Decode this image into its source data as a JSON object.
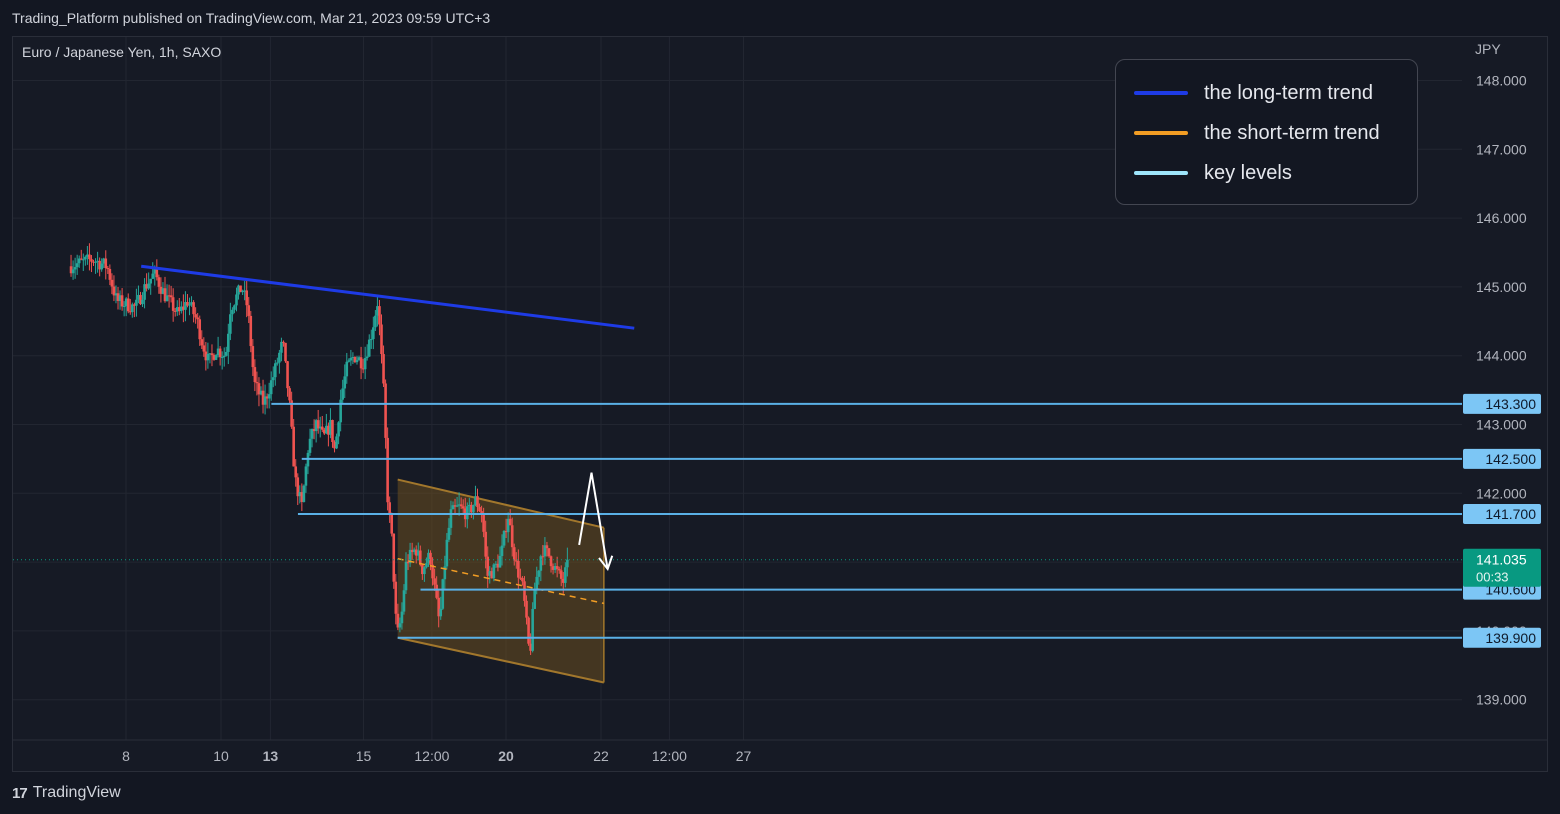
{
  "header": {
    "published": "Trading_Platform published on TradingView.com, Mar 21, 2023 09:59 UTC+3"
  },
  "chart_header": {
    "symbol": "Euro / Japanese Yen, 1h, SAXO",
    "currency": "JPY"
  },
  "legend": {
    "items": [
      {
        "label": "the long-term trend",
        "color": "#1e3be6"
      },
      {
        "label": "the short-term trend",
        "color": "#f29d24"
      },
      {
        "label": "key levels",
        "color": "#9ee5fb"
      }
    ]
  },
  "footer": {
    "brand_mark": "17",
    "brand": "TradingView"
  },
  "colors": {
    "background": "#161a25",
    "grid": "#222631",
    "up": "#26a69a",
    "down": "#ef5350",
    "long_trend": "#1e3be6",
    "short_trend": "#f29d24",
    "channel_fill": "#6b4e1f",
    "channel_edge": "#a2772c",
    "key_level": "#5ab0e6",
    "level_badge": "#7cc6f5",
    "price_badge": "#089981",
    "arrow": "#ffffff"
  },
  "chart_data": {
    "type": "candlestick",
    "title": "Euro / Japanese Yen, 1h, SAXO",
    "y_unit": "JPY",
    "ylim": [
      138.75,
      148.35
    ],
    "y_ticks": [
      "139.000",
      "140.000",
      "141.000",
      "142.000",
      "143.000",
      "144.000",
      "145.000",
      "146.000",
      "147.000",
      "148.000"
    ],
    "x_ticks": [
      {
        "t": 0.0,
        "label": "8",
        "bold": false
      },
      {
        "t": 1.0,
        "label": "10",
        "bold": false
      },
      {
        "t": 1.52,
        "label": "13",
        "bold": true
      },
      {
        "t": 2.5,
        "label": "15",
        "bold": false
      },
      {
        "t": 3.22,
        "label": "12:00",
        "bold": false
      },
      {
        "t": 4.0,
        "label": "20",
        "bold": true
      },
      {
        "t": 5.0,
        "label": "22",
        "bold": false
      },
      {
        "t": 5.72,
        "label": "12:00",
        "bold": false
      },
      {
        "t": 6.5,
        "label": "27",
        "bold": false
      }
    ],
    "price_path": [
      [
        -0.6,
        145.3
      ],
      [
        -0.35,
        145.4
      ],
      [
        -0.2,
        145.3
      ],
      [
        -0.1,
        144.8
      ],
      [
        0.1,
        144.7
      ],
      [
        0.2,
        145.0
      ],
      [
        0.3,
        145.2
      ],
      [
        0.4,
        144.9
      ],
      [
        0.55,
        144.6
      ],
      [
        0.65,
        144.8
      ],
      [
        0.75,
        144.5
      ],
      [
        0.8,
        144.2
      ],
      [
        0.87,
        143.9
      ],
      [
        0.95,
        144.1
      ],
      [
        1.05,
        144.0
      ],
      [
        1.1,
        144.7
      ],
      [
        1.18,
        144.9
      ],
      [
        1.22,
        145.0
      ],
      [
        1.28,
        144.7
      ],
      [
        1.35,
        143.6
      ],
      [
        1.45,
        143.3
      ],
      [
        1.55,
        143.7
      ],
      [
        1.65,
        144.2
      ],
      [
        1.72,
        143.3
      ],
      [
        1.78,
        142.2
      ],
      [
        1.85,
        141.8
      ],
      [
        1.92,
        142.7
      ],
      [
        2.0,
        143.0
      ],
      [
        2.08,
        142.8
      ],
      [
        2.15,
        143.0
      ],
      [
        2.2,
        142.6
      ],
      [
        2.25,
        143.3
      ],
      [
        2.32,
        143.8
      ],
      [
        2.4,
        144.0
      ],
      [
        2.5,
        143.9
      ],
      [
        2.58,
        144.3
      ],
      [
        2.65,
        144.8
      ],
      [
        2.72,
        143.3
      ],
      [
        2.75,
        142.0
      ],
      [
        2.8,
        141.3
      ],
      [
        2.85,
        139.9
      ],
      [
        2.9,
        140.2
      ],
      [
        2.95,
        141.0
      ],
      [
        3.05,
        141.2
      ],
      [
        3.12,
        140.9
      ],
      [
        3.2,
        141.1
      ],
      [
        3.26,
        140.5
      ],
      [
        3.3,
        140.1
      ],
      [
        3.37,
        141.2
      ],
      [
        3.42,
        141.7
      ],
      [
        3.5,
        141.8
      ],
      [
        3.6,
        141.7
      ],
      [
        3.68,
        141.9
      ],
      [
        3.75,
        141.7
      ],
      [
        3.8,
        140.8
      ],
      [
        3.88,
        140.9
      ],
      [
        3.95,
        141.1
      ],
      [
        4.02,
        141.7
      ],
      [
        4.1,
        141.0
      ],
      [
        4.18,
        140.6
      ],
      [
        4.25,
        139.6
      ],
      [
        4.3,
        140.6
      ],
      [
        4.38,
        141.2
      ],
      [
        4.45,
        141.1
      ],
      [
        4.52,
        140.9
      ],
      [
        4.6,
        140.7
      ],
      [
        4.65,
        141.0
      ]
    ],
    "last_t": 4.65,
    "last_price": 141.035,
    "last_price_label": "141.035",
    "countdown": "00:33",
    "key_levels": [
      {
        "price": 143.3,
        "label": "143.300",
        "t_start": 1.53
      },
      {
        "price": 142.5,
        "label": "142.500",
        "t_start": 1.85
      },
      {
        "price": 141.7,
        "label": "141.700",
        "t_start": 1.81
      },
      {
        "price": 140.6,
        "label": "140.600",
        "t_start": 3.1
      },
      {
        "price": 139.9,
        "label": "139.900",
        "t_start": 2.86
      }
    ],
    "long_term_trend": {
      "from": [
        0.16,
        145.3
      ],
      "to": [
        5.35,
        144.4
      ]
    },
    "short_term_channel": {
      "upper": {
        "from": [
          2.86,
          142.2
        ],
        "to": [
          5.03,
          141.5
        ]
      },
      "lower": {
        "from": [
          2.86,
          139.9
        ],
        "to": [
          5.03,
          139.25
        ]
      },
      "mid": {
        "from": [
          2.86,
          141.05
        ],
        "to": [
          5.03,
          140.4
        ]
      }
    },
    "projection_path": [
      [
        4.77,
        141.25
      ],
      [
        4.9,
        142.3
      ],
      [
        5.07,
        140.9
      ]
    ]
  }
}
